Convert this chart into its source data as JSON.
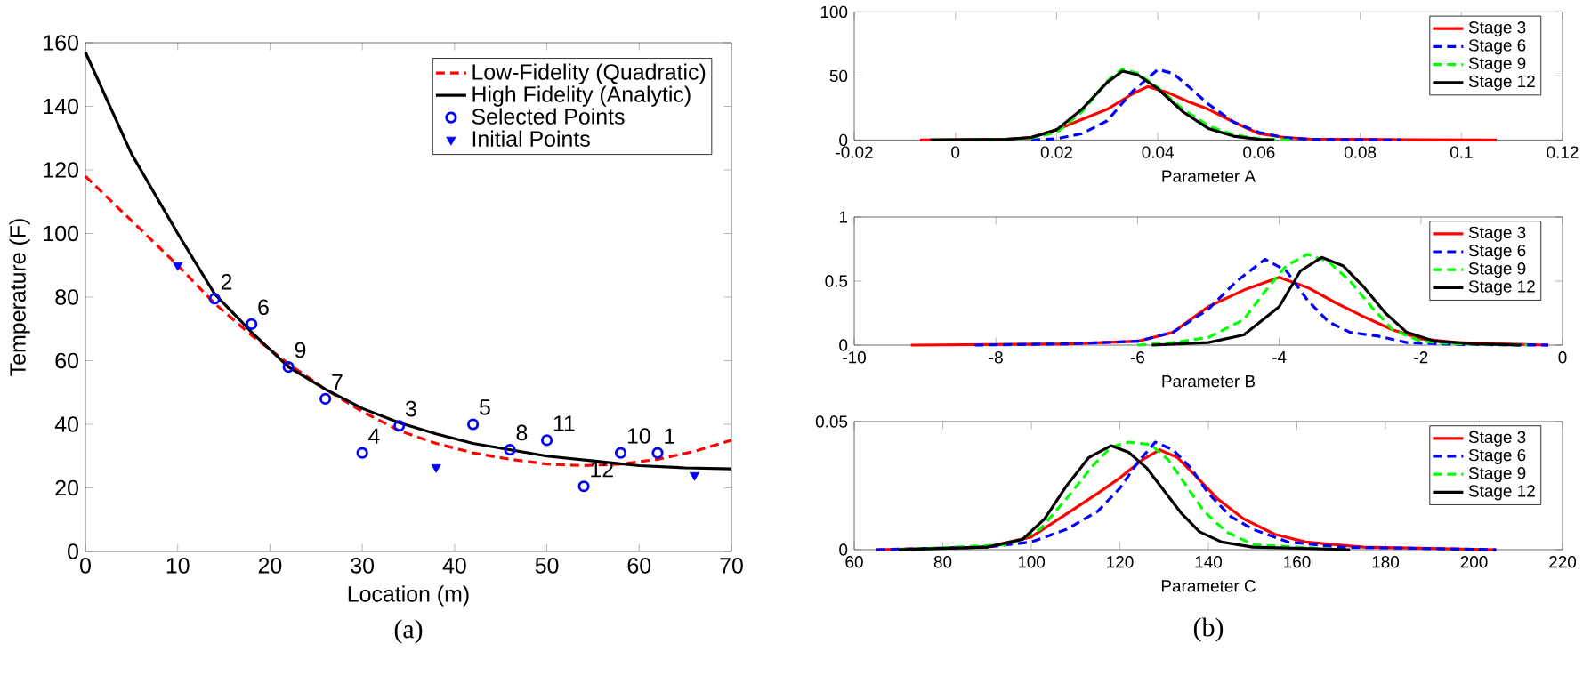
{
  "chart_data": [
    {
      "type": "line",
      "xlabel": "Location (m)",
      "ylabel": "Temperature (F)",
      "xlim": [
        0,
        70
      ],
      "ylim": [
        0,
        160
      ],
      "xticks": [
        0,
        10,
        20,
        30,
        40,
        50,
        60,
        70
      ],
      "yticks": [
        0,
        20,
        40,
        60,
        80,
        100,
        120,
        140,
        160
      ],
      "legend": "top right",
      "series": [
        {
          "name": "Low-Fidelity (Quadratic)",
          "color": "#ff0000",
          "line_style": "dashed",
          "x": [
            0,
            10,
            14,
            18,
            22,
            26,
            30,
            34,
            38,
            42,
            46,
            50,
            54,
            58,
            62,
            66,
            70
          ],
          "values": [
            118,
            90,
            78,
            68,
            59,
            51,
            44,
            38,
            34,
            31,
            29,
            27.5,
            27,
            27.5,
            29,
            31.5,
            35
          ]
        },
        {
          "name": "High Fidelity (Analytic)",
          "color": "#000000",
          "line_style": "solid",
          "x": [
            0,
            5,
            10,
            14,
            18,
            22,
            26,
            30,
            34,
            38,
            42,
            46,
            50,
            55,
            60,
            65,
            70
          ],
          "values": [
            157,
            125,
            100,
            81,
            69,
            58,
            51,
            45,
            40.5,
            37,
            34,
            32,
            30,
            28.5,
            27,
            26.3,
            26
          ]
        },
        {
          "name": "Selected Points",
          "type": "scatter",
          "marker": "circle",
          "color": "#0000ff",
          "x": [
            14,
            18,
            22,
            26,
            30,
            34,
            42,
            46,
            50,
            54,
            58,
            62
          ],
          "values": [
            79.5,
            71.5,
            58,
            48,
            31,
            39.5,
            40,
            32,
            35,
            20.5,
            31,
            31
          ]
        },
        {
          "name": "Initial Points",
          "type": "scatter",
          "marker": "triangle",
          "color": "#0000ff",
          "x": [
            10,
            38,
            66
          ],
          "values": [
            90,
            26.5,
            24
          ]
        }
      ],
      "annotations": [
        {
          "text": "2",
          "x": 14,
          "y": 79.5
        },
        {
          "text": "6",
          "x": 18,
          "y": 71.5
        },
        {
          "text": "9",
          "x": 22,
          "y": 58
        },
        {
          "text": "7",
          "x": 26,
          "y": 48
        },
        {
          "text": "4",
          "x": 30,
          "y": 31
        },
        {
          "text": "3",
          "x": 34,
          "y": 39.5
        },
        {
          "text": "5",
          "x": 42,
          "y": 40
        },
        {
          "text": "8",
          "x": 46,
          "y": 32
        },
        {
          "text": "11",
          "x": 50,
          "y": 35
        },
        {
          "text": "12",
          "x": 54,
          "y": 20.5
        },
        {
          "text": "10",
          "x": 58,
          "y": 31
        },
        {
          "text": "1",
          "x": 62,
          "y": 31
        },
        "(a)"
      ]
    },
    {
      "type": "line",
      "xlabel": "Parameter A",
      "xlim": [
        -0.02,
        0.12
      ],
      "ylim": [
        0,
        100
      ],
      "xticks": [
        -0.02,
        0,
        0.02,
        0.04,
        0.06,
        0.08,
        0.1,
        0.12
      ],
      "yticks": [
        0,
        50,
        100
      ],
      "legend": "top right",
      "series": [
        {
          "name": "Stage 3",
          "color": "#ff0000",
          "line_style": "solid",
          "x": [
            -0.007,
            0.01,
            0.015,
            0.02,
            0.025,
            0.03,
            0.035,
            0.038,
            0.042,
            0.046,
            0.05,
            0.055,
            0.06,
            0.065,
            0.07,
            0.09,
            0.107
          ],
          "values": [
            0,
            0.5,
            2,
            8,
            16,
            24,
            36,
            41.7,
            37,
            30,
            24,
            14,
            5,
            2,
            0.8,
            0.2,
            0
          ]
        },
        {
          "name": "Stage 6",
          "color": "#0000ff",
          "line_style": "dashed",
          "x": [
            0.015,
            0.02,
            0.025,
            0.03,
            0.035,
            0.04,
            0.043,
            0.046,
            0.05,
            0.055,
            0.06,
            0.065,
            0.07,
            0.088
          ],
          "values": [
            0,
            1,
            5,
            15,
            38,
            55,
            52,
            42,
            28,
            14,
            6,
            2,
            0.5,
            0
          ]
        },
        {
          "name": "Stage 9",
          "color": "#00ff00",
          "line_style": "dashed",
          "x": [
            -0.005,
            0.01,
            0.015,
            0.02,
            0.025,
            0.03,
            0.033,
            0.036,
            0.04,
            0.045,
            0.05,
            0.055,
            0.06,
            0.066
          ],
          "values": [
            0,
            0.3,
            1.5,
            6,
            22,
            46,
            55.5,
            52,
            41,
            24,
            11,
            4,
            1,
            0
          ]
        },
        {
          "name": "Stage 12",
          "color": "#000000",
          "line_style": "solid",
          "x": [
            -0.005,
            0.01,
            0.015,
            0.02,
            0.025,
            0.03,
            0.033,
            0.036,
            0.04,
            0.045,
            0.05,
            0.055,
            0.06,
            0.063
          ],
          "values": [
            0,
            0.5,
            2,
            8,
            24,
            45,
            53.7,
            51,
            40,
            22,
            9,
            3,
            0.5,
            0
          ]
        }
      ]
    },
    {
      "type": "line",
      "xlabel": "Parameter B",
      "xlim": [
        -10,
        0
      ],
      "ylim": [
        0,
        1
      ],
      "xticks": [
        -10,
        -8,
        -6,
        -4,
        -2,
        0
      ],
      "yticks": [
        0,
        0.5,
        1
      ],
      "legend": "top right",
      "series": [
        {
          "name": "Stage 3",
          "color": "#ff0000",
          "line_style": "solid",
          "x": [
            -9.2,
            -7,
            -6,
            -5.5,
            -5,
            -4.5,
            -4,
            -3.6,
            -3.2,
            -2.8,
            -2.4,
            -2,
            -1.5,
            -0.2
          ],
          "values": [
            0,
            0.01,
            0.03,
            0.1,
            0.3,
            0.43,
            0.53,
            0.45,
            0.33,
            0.22,
            0.12,
            0.05,
            0.02,
            0
          ]
        },
        {
          "name": "Stage 6",
          "color": "#0000ff",
          "line_style": "dashed",
          "x": [
            -8.3,
            -7,
            -6,
            -5.5,
            -5,
            -4.6,
            -4.2,
            -3.9,
            -3.6,
            -3.3,
            -3,
            -2.6,
            -2.2,
            -1.5,
            -0.2
          ],
          "values": [
            0,
            0.01,
            0.03,
            0.1,
            0.28,
            0.5,
            0.67,
            0.58,
            0.35,
            0.18,
            0.1,
            0.07,
            0.02,
            0.005,
            0
          ]
        },
        {
          "name": "Stage 9",
          "color": "#00ff00",
          "line_style": "dashed",
          "x": [
            -6,
            -5.5,
            -5,
            -4.5,
            -4.2,
            -3.9,
            -3.6,
            -3.3,
            -3,
            -2.7,
            -2.4,
            -2,
            -1.5,
            -0.5
          ],
          "values": [
            0,
            0.02,
            0.06,
            0.2,
            0.42,
            0.62,
            0.71,
            0.65,
            0.5,
            0.3,
            0.12,
            0.03,
            0.01,
            0
          ]
        },
        {
          "name": "Stage 12",
          "color": "#000000",
          "line_style": "solid",
          "x": [
            -5.8,
            -5,
            -4.5,
            -4,
            -3.7,
            -3.4,
            -3.1,
            -2.8,
            -2.5,
            -2.2,
            -1.8,
            -1.2,
            -0.6
          ],
          "values": [
            0,
            0.02,
            0.08,
            0.3,
            0.58,
            0.685,
            0.62,
            0.45,
            0.25,
            0.1,
            0.03,
            0.01,
            0
          ]
        }
      ]
    },
    {
      "type": "line",
      "xlabel": "Parameter C",
      "xlim": [
        60,
        220
      ],
      "ylim": [
        0,
        0.05
      ],
      "xticks": [
        60,
        80,
        100,
        120,
        140,
        160,
        180,
        200,
        220
      ],
      "yticks": [
        0,
        0.05
      ],
      "legend": "top right",
      "series": [
        {
          "name": "Stage 3",
          "color": "#ff0000",
          "line_style": "solid",
          "x": [
            65,
            90,
            100,
            108,
            115,
            120,
            125,
            129,
            133,
            137,
            142,
            148,
            155,
            162,
            175,
            205
          ],
          "values": [
            0,
            0.001,
            0.005,
            0.014,
            0.022,
            0.028,
            0.035,
            0.039,
            0.036,
            0.029,
            0.02,
            0.012,
            0.006,
            0.003,
            0.001,
            0
          ]
        },
        {
          "name": "Stage 6",
          "color": "#0000ff",
          "line_style": "dashed",
          "x": [
            65,
            90,
            100,
            108,
            115,
            120,
            124,
            128,
            132,
            136,
            140,
            145,
            150,
            158,
            170,
            205
          ],
          "values": [
            0,
            0.001,
            0.003,
            0.008,
            0.015,
            0.024,
            0.034,
            0.042,
            0.039,
            0.032,
            0.022,
            0.013,
            0.008,
            0.003,
            0.001,
            0
          ]
        },
        {
          "name": "Stage 9",
          "color": "#00ff00",
          "line_style": "dashed",
          "x": [
            70,
            95,
            102,
            108,
            114,
            118,
            122,
            127,
            131,
            135,
            139,
            144,
            150,
            170
          ],
          "values": [
            0,
            0.002,
            0.008,
            0.02,
            0.033,
            0.04,
            0.042,
            0.041,
            0.035,
            0.025,
            0.015,
            0.007,
            0.002,
            0
          ]
        },
        {
          "name": "Stage 12",
          "color": "#000000",
          "line_style": "solid",
          "x": [
            70,
            90,
            98,
            103,
            108,
            113,
            118,
            122,
            126,
            130,
            134,
            138,
            143,
            150,
            172
          ],
          "values": [
            0,
            0.001,
            0.004,
            0.012,
            0.025,
            0.036,
            0.0406,
            0.038,
            0.032,
            0.023,
            0.014,
            0.007,
            0.003,
            0.001,
            0
          ]
        }
      ],
      "annotations": [
        "(b)"
      ]
    }
  ]
}
